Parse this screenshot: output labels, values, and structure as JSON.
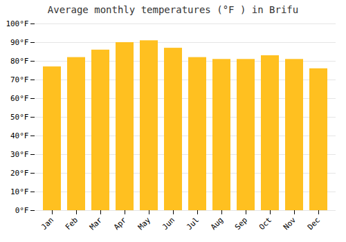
{
  "chart_data": {
    "type": "bar",
    "title": "Average monthly temperatures (°F ) in Brifu",
    "categories": [
      "Jan",
      "Feb",
      "Mar",
      "Apr",
      "May",
      "Jun",
      "Jul",
      "Aug",
      "Sep",
      "Oct",
      "Nov",
      "Dec"
    ],
    "values": [
      77,
      82,
      86,
      90,
      91,
      87,
      82,
      81,
      81,
      83,
      81,
      76
    ],
    "color": "#FFC020",
    "ylim": [
      0,
      100
    ],
    "yticks": [
      {
        "value": 0,
        "label": "0°F"
      },
      {
        "value": 10,
        "label": "10°F"
      },
      {
        "value": 20,
        "label": "20°F"
      },
      {
        "value": 30,
        "label": "30°F"
      },
      {
        "value": 40,
        "label": "40°F"
      },
      {
        "value": 50,
        "label": "50°F"
      },
      {
        "value": 60,
        "label": "60°F"
      },
      {
        "value": 70,
        "label": "70°F"
      },
      {
        "value": 80,
        "label": "80°F"
      },
      {
        "value": 90,
        "label": "90°F"
      },
      {
        "value": 100,
        "label": "100°F"
      }
    ],
    "grid": true
  }
}
